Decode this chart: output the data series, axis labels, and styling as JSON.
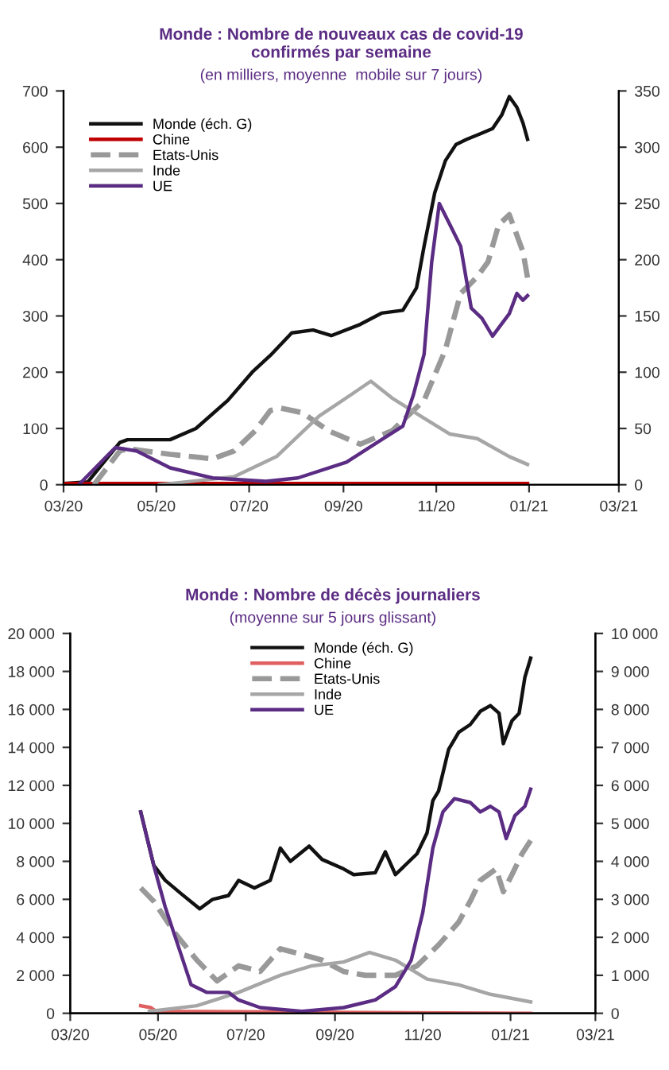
{
  "chart_data": [
    {
      "type": "line",
      "title": "Monde : Nombre de nouveaux cas de covid-19\nconfirmés par semaine",
      "subtitle": "(en milliers, moyenne  mobile sur 7 jours)",
      "legend": "top left",
      "grid": false,
      "xlim": [
        "2020-03-01",
        "2021-03-01"
      ],
      "xticks": [
        {
          "value": "2020-03-01",
          "label": "03/20"
        },
        {
          "value": "2020-05-01",
          "label": "05/20"
        },
        {
          "value": "2020-07-01",
          "label": "07/20"
        },
        {
          "value": "2020-09-01",
          "label": "09/20"
        },
        {
          "value": "2020-11-01",
          "label": "11/20"
        },
        {
          "value": "2021-01-01",
          "label": "01/21"
        },
        {
          "value": "2021-03-01",
          "label": "03/21"
        }
      ],
      "ylim": [
        0,
        700
      ],
      "yticks": [
        0,
        100,
        200,
        300,
        400,
        500,
        600,
        700
      ],
      "y2lim": [
        0,
        350
      ],
      "y2ticks": [
        0,
        50,
        100,
        150,
        200,
        250,
        300,
        350
      ],
      "series": [
        {
          "name": "Monde (éch. G)",
          "color": "#111111",
          "line_style": "solid",
          "x": [
            "2020-03-01",
            "2020-03-17",
            "2020-04-07",
            "2020-04-12",
            "2020-05-10",
            "2020-05-27",
            "2020-06-17",
            "2020-07-03",
            "2020-07-15",
            "2020-07-29",
            "2020-08-12",
            "2020-08-24",
            "2020-09-12",
            "2020-09-26",
            "2020-10-10",
            "2020-10-19",
            "2020-10-24",
            "2020-10-31",
            "2020-11-07",
            "2020-11-14",
            "2020-11-21",
            "2020-11-30",
            "2020-12-08",
            "2020-12-14",
            "2020-12-19",
            "2020-12-24",
            "2020-12-28",
            "2020-12-31"
          ],
          "values": [
            2,
            5,
            75,
            80,
            80,
            100,
            150,
            200,
            230,
            270,
            275,
            265,
            285,
            305,
            310,
            350,
            424,
            519,
            576,
            605,
            614,
            624,
            633,
            657,
            690,
            671,
            643,
            614
          ]
        },
        {
          "name": "Chine",
          "color": "#c00000",
          "line_style": "solid",
          "axis": "y2",
          "x": [
            "2020-03-01",
            "2020-12-31"
          ],
          "values": [
            1,
            1
          ]
        },
        {
          "name": "Etats-Unis",
          "color": "#999999",
          "line_style": "dashed",
          "axis": "y2",
          "x": [
            "2020-03-21",
            "2020-04-07",
            "2020-04-12",
            "2020-05-10",
            "2020-06-07",
            "2020-06-21",
            "2020-07-05",
            "2020-07-15",
            "2020-07-22",
            "2020-08-05",
            "2020-08-22",
            "2020-09-12",
            "2020-10-03",
            "2020-10-24",
            "2020-11-07",
            "2020-11-17",
            "2020-11-28",
            "2020-12-05",
            "2020-12-12",
            "2020-12-19",
            "2020-12-28",
            "2020-12-31"
          ],
          "values": [
            0,
            30,
            32,
            27,
            23,
            30,
            48,
            66,
            68,
            64,
            48,
            36,
            48,
            75,
            120,
            170,
            185,
            198,
            231,
            240,
            207,
            184
          ]
        },
        {
          "name": "Inde",
          "color": "#a6a6a6",
          "line_style": "solid",
          "axis": "y2",
          "x": [
            "2020-05-03",
            "2020-06-21",
            "2020-07-19",
            "2020-08-16",
            "2020-09-06",
            "2020-09-19",
            "2020-10-03",
            "2020-10-24",
            "2020-11-10",
            "2020-11-28",
            "2020-12-19",
            "2020-12-31"
          ],
          "values": [
            0,
            7,
            25,
            61,
            80,
            92,
            77,
            59,
            45,
            41,
            25,
            18
          ]
        },
        {
          "name": "UE",
          "color": "#5b2c83",
          "line_style": "solid",
          "axis": "y2",
          "x": [
            "2020-03-11",
            "2020-04-04",
            "2020-04-18",
            "2020-05-10",
            "2020-06-07",
            "2020-07-12",
            "2020-08-02",
            "2020-09-03",
            "2020-09-26",
            "2020-10-10",
            "2020-10-17",
            "2020-10-24",
            "2020-10-29",
            "2020-11-03",
            "2020-11-10",
            "2020-11-17",
            "2020-11-24",
            "2020-12-01",
            "2020-12-08",
            "2020-12-14",
            "2020-12-19",
            "2020-12-24",
            "2020-12-28",
            "2020-12-31"
          ],
          "values": [
            0,
            33,
            30,
            15,
            6,
            3,
            6,
            20,
            40,
            52,
            80,
            116,
            198,
            250,
            231,
            212,
            157,
            148,
            132,
            143,
            152,
            170,
            164,
            168
          ]
        }
      ]
    },
    {
      "type": "line",
      "title": "Monde : Nombre de décès journaliers",
      "subtitle": "(moyenne sur 5 jours glissant)",
      "legend": "top",
      "grid": false,
      "xlim": [
        "2020-03-01",
        "2021-03-01"
      ],
      "xticks": [
        {
          "value": "2020-03-01",
          "label": "03/20"
        },
        {
          "value": "2020-05-01",
          "label": "05/20"
        },
        {
          "value": "2020-07-01",
          "label": "07/20"
        },
        {
          "value": "2020-09-01",
          "label": "09/20"
        },
        {
          "value": "2020-11-01",
          "label": "11/20"
        },
        {
          "value": "2021-01-01",
          "label": "01/21"
        },
        {
          "value": "2021-03-01",
          "label": "03/21"
        }
      ],
      "ylim": [
        0,
        20000
      ],
      "yticks": [
        {
          "value": 0,
          "label": "0"
        },
        {
          "value": 2000,
          "label": "2 000"
        },
        {
          "value": 4000,
          "label": "4 000"
        },
        {
          "value": 6000,
          "label": "6 000"
        },
        {
          "value": 8000,
          "label": "8 000"
        },
        {
          "value": 10000,
          "label": "10 000"
        },
        {
          "value": 12000,
          "label": "12 000"
        },
        {
          "value": 14000,
          "label": "14 000"
        },
        {
          "value": 16000,
          "label": "16 000"
        },
        {
          "value": 18000,
          "label": "18 000"
        },
        {
          "value": 20000,
          "label": "20 000"
        }
      ],
      "y2lim": [
        0,
        10000
      ],
      "y2ticks": [
        {
          "value": 0,
          "label": "0"
        },
        {
          "value": 1000,
          "label": "1 000"
        },
        {
          "value": 2000,
          "label": "2 000"
        },
        {
          "value": 3000,
          "label": "3 000"
        },
        {
          "value": 4000,
          "label": "4 000"
        },
        {
          "value": 5000,
          "label": "5 000"
        },
        {
          "value": 6000,
          "label": "6 000"
        },
        {
          "value": 7000,
          "label": "7 000"
        },
        {
          "value": 8000,
          "label": "8 000"
        },
        {
          "value": 9000,
          "label": "9 000"
        },
        {
          "value": 10000,
          "label": "10 000"
        }
      ],
      "series": [
        {
          "name": "Monde (éch. G)",
          "color": "#111111",
          "line_style": "solid",
          "x": [
            "2020-04-19",
            "2020-04-28",
            "2020-05-06",
            "2020-05-17",
            "2020-05-30",
            "2020-06-08",
            "2020-06-19",
            "2020-06-26",
            "2020-07-07",
            "2020-07-18",
            "2020-07-25",
            "2020-08-01",
            "2020-08-14",
            "2020-08-23",
            "2020-09-07",
            "2020-09-14",
            "2020-09-29",
            "2020-10-06",
            "2020-10-13",
            "2020-10-28",
            "2020-11-04",
            "2020-11-08",
            "2020-11-12",
            "2020-11-19",
            "2020-11-26",
            "2020-12-04",
            "2020-12-11",
            "2020-12-18",
            "2020-12-24",
            "2020-12-27",
            "2021-01-02",
            "2021-01-07",
            "2021-01-11",
            "2021-01-15"
          ],
          "values": [
            10600,
            7800,
            7000,
            6300,
            5500,
            6000,
            6200,
            7000,
            6600,
            7000,
            8700,
            8000,
            8800,
            8100,
            7600,
            7300,
            7400,
            8500,
            7300,
            8400,
            9500,
            11200,
            11700,
            13900,
            14800,
            15200,
            15900,
            16200,
            15800,
            14200,
            15400,
            15800,
            17700,
            18700
          ]
        },
        {
          "name": "Chine",
          "color": "#e06060",
          "line_style": "solid",
          "axis": "y2",
          "x": [
            "2020-04-19",
            "2020-04-26",
            "2020-04-30",
            "2021-01-15"
          ],
          "values": [
            200,
            150,
            50,
            0
          ]
        },
        {
          "name": "Etats-Unis",
          "color": "#999999",
          "line_style": "dashed",
          "axis": "y2",
          "x": [
            "2020-04-19",
            "2020-04-28",
            "2020-05-13",
            "2020-05-28",
            "2020-06-11",
            "2020-06-26",
            "2020-07-11",
            "2020-07-25",
            "2020-08-09",
            "2020-08-23",
            "2020-09-07",
            "2020-09-22",
            "2020-10-13",
            "2020-10-28",
            "2020-11-12",
            "2020-11-26",
            "2020-12-04",
            "2020-12-11",
            "2020-12-22",
            "2020-12-27",
            "2021-01-02",
            "2021-01-09",
            "2021-01-15"
          ],
          "values": [
            3300,
            2950,
            2100,
            1400,
            850,
            1250,
            1100,
            1700,
            1550,
            1400,
            1100,
            1000,
            1000,
            1250,
            1800,
            2400,
            2950,
            3500,
            3800,
            3200,
            3650,
            4200,
            4550
          ]
        },
        {
          "name": "Inde",
          "color": "#a6a6a6",
          "line_style": "solid",
          "axis": "y2",
          "x": [
            "2020-04-25",
            "2020-05-28",
            "2020-06-26",
            "2020-07-25",
            "2020-08-16",
            "2020-09-07",
            "2020-09-25",
            "2020-10-13",
            "2020-11-04",
            "2020-11-26",
            "2020-12-18",
            "2021-01-15"
          ],
          "values": [
            50,
            200,
            550,
            1000,
            1250,
            1350,
            1600,
            1400,
            900,
            750,
            500,
            300
          ]
        },
        {
          "name": "UE",
          "color": "#5b2c83",
          "line_style": "solid",
          "axis": "y2",
          "x": [
            "2020-04-19",
            "2020-04-28",
            "2020-05-06",
            "2020-05-17",
            "2020-05-24",
            "2020-06-04",
            "2020-06-19",
            "2020-06-26",
            "2020-07-11",
            "2020-08-09",
            "2020-09-07",
            "2020-09-29",
            "2020-10-13",
            "2020-10-24",
            "2020-11-01",
            "2020-11-08",
            "2020-11-15",
            "2020-11-23",
            "2020-12-04",
            "2020-12-11",
            "2020-12-18",
            "2020-12-24",
            "2020-12-29",
            "2021-01-04",
            "2021-01-11",
            "2021-01-15"
          ],
          "values": [
            5300,
            3900,
            2800,
            1550,
            750,
            550,
            550,
            350,
            150,
            50,
            150,
            350,
            700,
            1400,
            2650,
            4350,
            5300,
            5650,
            5550,
            5300,
            5450,
            5300,
            4600,
            5200,
            5450,
            5900
          ]
        }
      ]
    }
  ]
}
